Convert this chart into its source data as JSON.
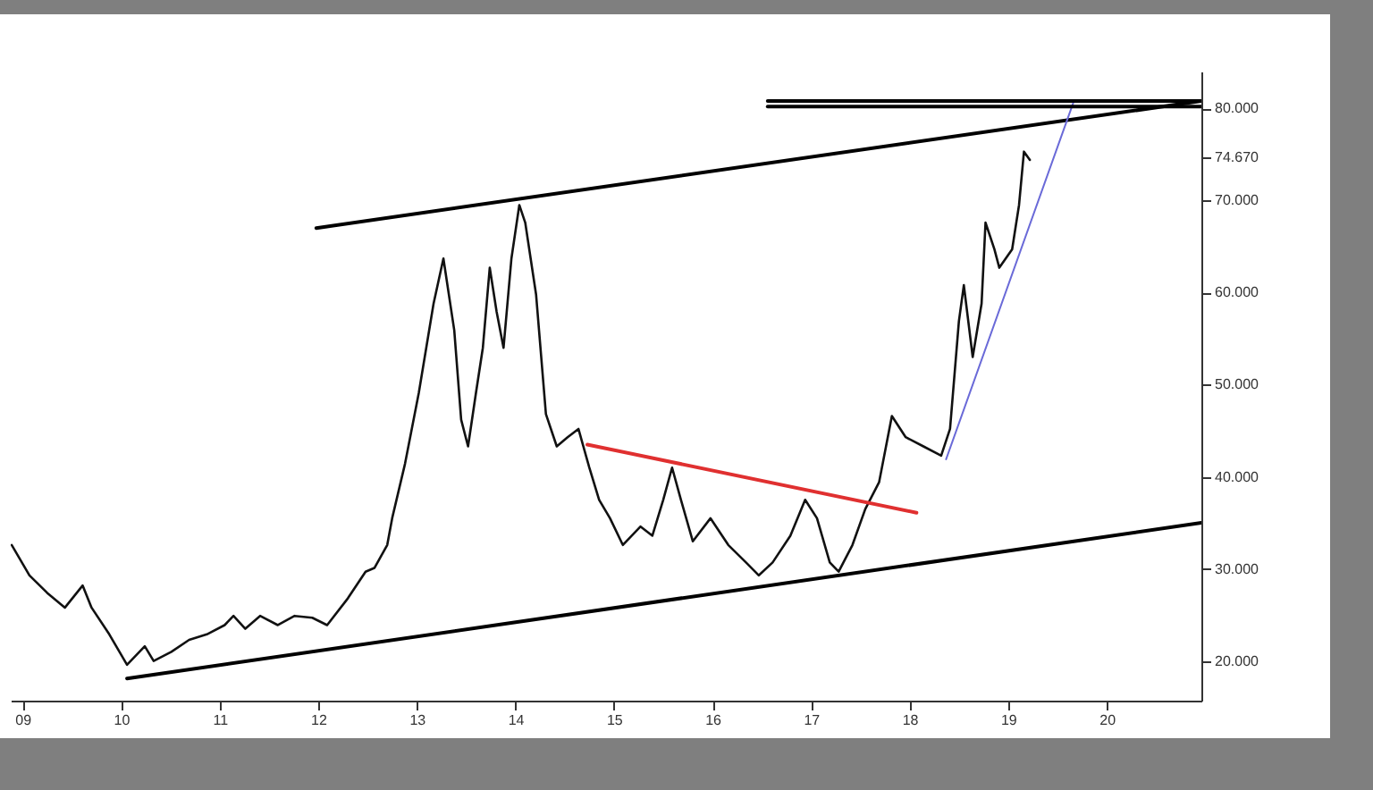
{
  "chart_data": {
    "type": "line",
    "xlim": [
      8.88,
      20.96
    ],
    "ylim": [
      15.7,
      84
    ],
    "xticks": [
      {
        "value": 9,
        "label": "09"
      },
      10,
      11,
      12,
      13,
      14,
      15,
      16,
      17,
      18,
      19,
      20
    ],
    "yticks": [
      {
        "value": 20,
        "label": "20.000"
      },
      {
        "value": 30,
        "label": "30.000"
      },
      {
        "value": 40,
        "label": "40.000"
      },
      {
        "value": 50,
        "label": "50.000"
      },
      {
        "value": 60,
        "label": "60.000"
      },
      {
        "value": 70,
        "label": "70.000"
      },
      {
        "value": 74.67,
        "label": "74.670"
      },
      {
        "value": 80,
        "label": "80.000"
      }
    ],
    "line_style": "solid",
    "series": [
      {
        "color": "#111111",
        "x": [
          8.89,
          9.07,
          9.25,
          9.43,
          9.61,
          9.7,
          9.88,
          10.06,
          10.24,
          10.33,
          10.51,
          10.69,
          10.87,
          11.05,
          11.14,
          11.26,
          11.41,
          11.59,
          11.76,
          11.94,
          12.09,
          12.3,
          12.48,
          12.57,
          12.7,
          12.75,
          12.88,
          13.02,
          13.17,
          13.27,
          13.38,
          13.45,
          13.52,
          13.6,
          13.67,
          13.74,
          13.81,
          13.88,
          13.96,
          14.04,
          14.1,
          14.21,
          14.31,
          14.42,
          14.53,
          14.64,
          14.75,
          14.85,
          14.96,
          15.09,
          15.27,
          15.39,
          15.5,
          15.59,
          15.68,
          15.8,
          15.98,
          16.16,
          16.34,
          16.47,
          16.61,
          16.79,
          16.94,
          17.06,
          17.19,
          17.28,
          17.42,
          17.55,
          17.69,
          17.82,
          17.96,
          18.14,
          18.32,
          18.41,
          18.5,
          18.55,
          18.64,
          18.73,
          18.77,
          18.86,
          18.91,
          19.04,
          19.11,
          19.16,
          19.22
        ],
        "values": [
          32.6,
          29.3,
          27.4,
          25.8,
          28.2,
          25.8,
          22.9,
          19.6,
          21.6,
          20.0,
          21.0,
          22.3,
          22.9,
          23.9,
          24.9,
          23.5,
          24.9,
          23.9,
          24.9,
          24.7,
          23.9,
          26.8,
          29.7,
          30.1,
          32.6,
          35.5,
          41.4,
          49.1,
          58.8,
          63.7,
          55.9,
          46.2,
          43.3,
          49.1,
          54.0,
          62.7,
          57.9,
          54.0,
          63.7,
          69.5,
          67.6,
          59.8,
          46.8,
          43.3,
          44.3,
          45.2,
          41.0,
          37.5,
          35.5,
          32.6,
          34.6,
          33.6,
          37.5,
          41.0,
          37.5,
          33.0,
          35.5,
          32.6,
          30.7,
          29.3,
          30.7,
          33.6,
          37.5,
          35.5,
          30.7,
          29.7,
          32.6,
          36.5,
          39.4,
          46.6,
          44.3,
          43.3,
          42.3,
          45.2,
          56.9,
          60.8,
          53.0,
          58.8,
          67.6,
          64.7,
          62.7,
          64.7,
          69.5,
          75.3,
          74.4
        ]
      },
      {
        "color": "#000000",
        "x": [
          11.98,
          20.96
        ],
        "values": [
          67.0,
          80.8
        ]
      },
      {
        "color": "#000000",
        "x": [
          10.06,
          20.96
        ],
        "values": [
          18.1,
          35.0
        ]
      },
      {
        "color": "#e03030",
        "x": [
          14.73,
          18.07
        ],
        "values": [
          43.5,
          36.1
        ]
      },
      {
        "color": "#6a6ad8",
        "x": [
          18.37,
          19.66
        ],
        "values": [
          41.9,
          80.6
        ]
      },
      {
        "color": "#000000",
        "x": [
          16.56,
          20.96
        ],
        "values": [
          80.8,
          80.8
        ]
      },
      {
        "color": "#000000",
        "x": [
          16.56,
          20.96
        ],
        "values": [
          80.2,
          80.2
        ]
      }
    ]
  }
}
